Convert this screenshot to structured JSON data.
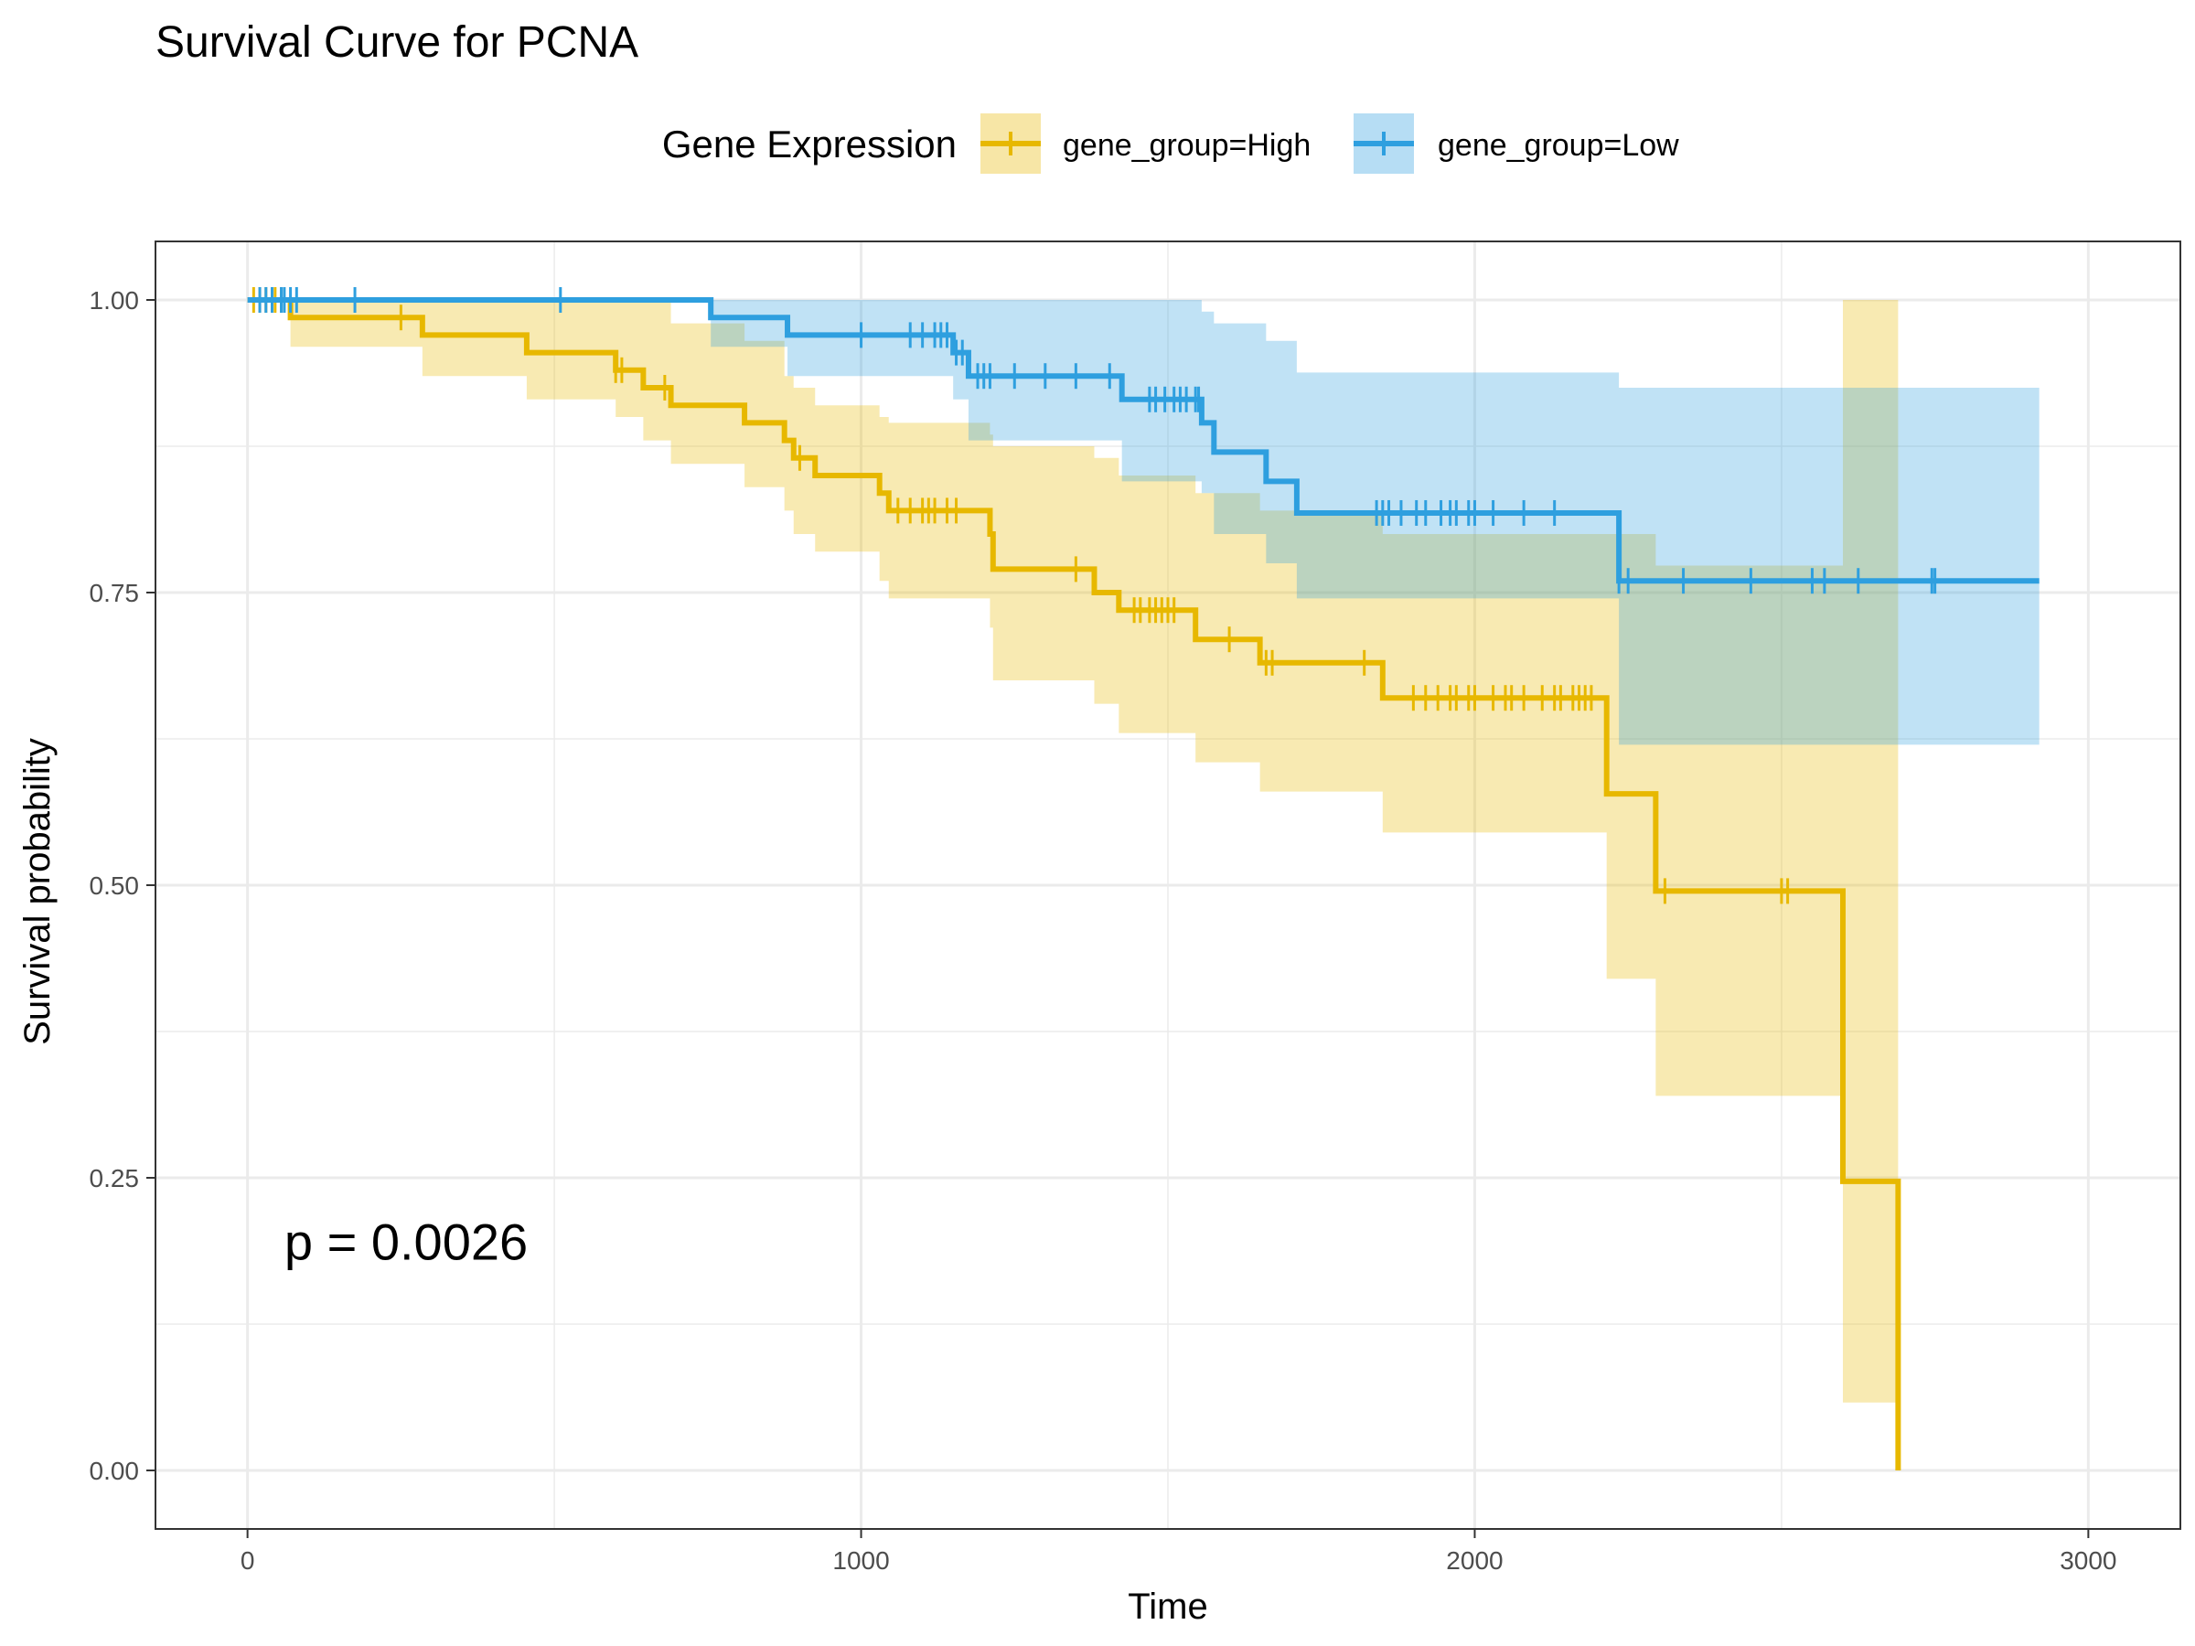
{
  "chart_data": {
    "type": "line",
    "title": "Survival Curve for PCNA",
    "xlabel": "Time",
    "ylabel": "Survival probability",
    "xlim": [
      -150,
      3150
    ],
    "ylim": [
      -0.05,
      1.05
    ],
    "x_ticks": [
      0,
      1000,
      2000,
      3000
    ],
    "x_tick_labels": [
      "0",
      "1000",
      "2000",
      "3000"
    ],
    "y_ticks": [
      0,
      0.25,
      0.5,
      0.75,
      1.0
    ],
    "y_tick_labels": [
      "0.00",
      "0.25",
      "0.50",
      "0.75",
      "1.00"
    ],
    "grid": true,
    "legend": {
      "title": "Gene Expression",
      "placement": "top",
      "entries": [
        "gene_group=High",
        "gene_group=Low"
      ]
    },
    "annotation": "p = 0.0026",
    "series": [
      {
        "name": "gene_group=High",
        "color": "#E7B800",
        "steps": [
          [
            0,
            1.0
          ],
          [
            70,
            0.985
          ],
          [
            285,
            0.97
          ],
          [
            455,
            0.955
          ],
          [
            600,
            0.94
          ],
          [
            645,
            0.925
          ],
          [
            690,
            0.91
          ],
          [
            810,
            0.895
          ],
          [
            875,
            0.88
          ],
          [
            890,
            0.865
          ],
          [
            925,
            0.85
          ],
          [
            1030,
            0.835
          ],
          [
            1045,
            0.82
          ],
          [
            1210,
            0.8
          ],
          [
            1215,
            0.77
          ],
          [
            1380,
            0.75
          ],
          [
            1420,
            0.735
          ],
          [
            1545,
            0.71
          ],
          [
            1650,
            0.69
          ],
          [
            1850,
            0.66
          ],
          [
            2215,
            0.578
          ],
          [
            2295,
            0.495
          ],
          [
            2600,
            0.247
          ],
          [
            2690,
            0.0
          ]
        ],
        "end_x": 2690,
        "ci_upper": [
          [
            0,
            1.0
          ],
          [
            70,
            1.0
          ],
          [
            285,
            1.0
          ],
          [
            455,
            1.0
          ],
          [
            600,
            1.0
          ],
          [
            645,
            1.0
          ],
          [
            690,
            0.98
          ],
          [
            810,
            0.965
          ],
          [
            875,
            0.935
          ],
          [
            890,
            0.925
          ],
          [
            925,
            0.91
          ],
          [
            1030,
            0.9
          ],
          [
            1045,
            0.895
          ],
          [
            1210,
            0.885
          ],
          [
            1215,
            0.875
          ],
          [
            1380,
            0.865
          ],
          [
            1420,
            0.85
          ],
          [
            1545,
            0.835
          ],
          [
            1650,
            0.82
          ],
          [
            1850,
            0.8
          ],
          [
            2215,
            0.8
          ],
          [
            2295,
            0.773
          ],
          [
            2600,
            1.0
          ],
          [
            2690,
            1.0
          ]
        ],
        "ci_lower": [
          [
            0,
            1.0
          ],
          [
            70,
            0.96
          ],
          [
            285,
            0.935
          ],
          [
            455,
            0.915
          ],
          [
            600,
            0.9
          ],
          [
            645,
            0.88
          ],
          [
            690,
            0.86
          ],
          [
            810,
            0.84
          ],
          [
            875,
            0.82
          ],
          [
            890,
            0.8
          ],
          [
            925,
            0.785
          ],
          [
            1030,
            0.76
          ],
          [
            1045,
            0.745
          ],
          [
            1210,
            0.72
          ],
          [
            1215,
            0.675
          ],
          [
            1380,
            0.655
          ],
          [
            1420,
            0.63
          ],
          [
            1545,
            0.605
          ],
          [
            1650,
            0.58
          ],
          [
            1850,
            0.545
          ],
          [
            2215,
            0.42
          ],
          [
            2295,
            0.32
          ],
          [
            2600,
            0.058
          ],
          [
            2690,
            0.058
          ]
        ],
        "censor_x": [
          10,
          20,
          30,
          45,
          55,
          250,
          600,
          610,
          680,
          900,
          1060,
          1080,
          1100,
          1110,
          1120,
          1140,
          1155,
          1350,
          1445,
          1455,
          1470,
          1480,
          1490,
          1500,
          1510,
          1600,
          1660,
          1670,
          1820,
          1900,
          1920,
          1940,
          1960,
          1970,
          1990,
          2000,
          2030,
          2050,
          2060,
          2080,
          2110,
          2130,
          2140,
          2160,
          2170,
          2180,
          2190,
          2310,
          2500,
          2510
        ]
      },
      {
        "name": "gene_group=Low",
        "color": "#2E9FDF",
        "steps": [
          [
            0,
            1.0
          ],
          [
            755,
            0.985
          ],
          [
            880,
            0.97
          ],
          [
            1150,
            0.955
          ],
          [
            1175,
            0.935
          ],
          [
            1425,
            0.915
          ],
          [
            1555,
            0.895
          ],
          [
            1575,
            0.87
          ],
          [
            1660,
            0.845
          ],
          [
            1710,
            0.818
          ],
          [
            2235,
            0.76
          ]
        ],
        "end_x": 2920,
        "ci_upper": [
          [
            0,
            1.0
          ],
          [
            755,
            1.0
          ],
          [
            880,
            1.0
          ],
          [
            1150,
            1.0
          ],
          [
            1175,
            1.0
          ],
          [
            1425,
            1.0
          ],
          [
            1555,
            0.99
          ],
          [
            1575,
            0.98
          ],
          [
            1660,
            0.965
          ],
          [
            1710,
            0.938
          ],
          [
            2235,
            0.925
          ]
        ],
        "ci_lower": [
          [
            0,
            1.0
          ],
          [
            755,
            0.96
          ],
          [
            880,
            0.935
          ],
          [
            1150,
            0.915
          ],
          [
            1175,
            0.88
          ],
          [
            1425,
            0.845
          ],
          [
            1555,
            0.835
          ],
          [
            1575,
            0.8
          ],
          [
            1660,
            0.775
          ],
          [
            1710,
            0.745
          ],
          [
            2235,
            0.62
          ]
        ],
        "censor_x": [
          20,
          30,
          40,
          55,
          60,
          70,
          80,
          175,
          510,
          1000,
          1080,
          1100,
          1120,
          1130,
          1140,
          1155,
          1165,
          1190,
          1200,
          1210,
          1250,
          1300,
          1350,
          1405,
          1470,
          1480,
          1495,
          1510,
          1520,
          1530,
          1545,
          1550,
          1840,
          1850,
          1860,
          1880,
          1905,
          1920,
          1945,
          1960,
          1970,
          1990,
          2000,
          2030,
          2080,
          2130,
          2235,
          2250,
          2340,
          2450,
          2550,
          2570,
          2625,
          2745,
          2750
        ]
      }
    ]
  }
}
